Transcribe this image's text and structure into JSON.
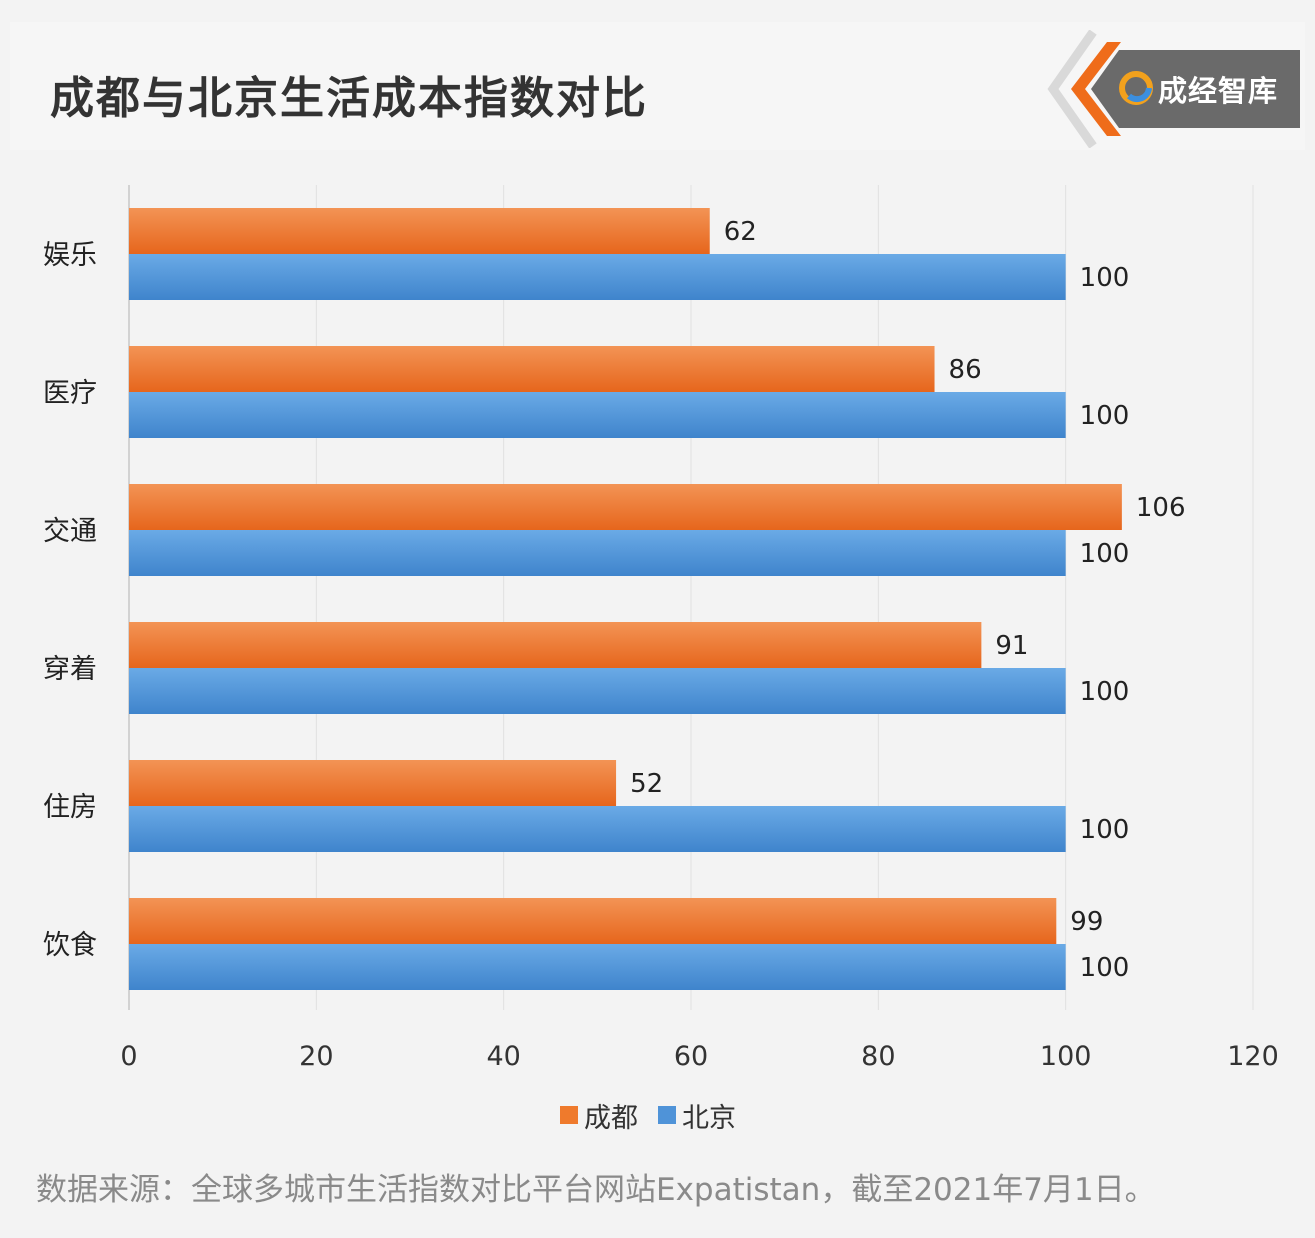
{
  "header": {
    "title": "成都与北京生活成本指数对比",
    "logo_text": "成经智库",
    "logo_colors": {
      "panel": "#6a6a6a",
      "accent": "#ef6c1a",
      "chevron_light": "#d9d9d9"
    }
  },
  "chart_data": {
    "type": "bar",
    "orientation": "horizontal",
    "categories": [
      "娱乐",
      "医疗",
      "交通",
      "穿着",
      "住房",
      "饮食"
    ],
    "series": [
      {
        "name": "成都",
        "color": "#ef7a2c",
        "values": [
          62,
          86,
          106,
          91,
          52,
          99
        ]
      },
      {
        "name": "北京",
        "color": "#4f93d8",
        "values": [
          100,
          100,
          100,
          100,
          100,
          100
        ]
      }
    ],
    "xlim": [
      0,
      120
    ],
    "x_ticks": [
      "0",
      "20",
      "40",
      "60",
      "80",
      "100",
      "120"
    ],
    "data_labels": true,
    "grid": "vertical",
    "legend": "bottom"
  },
  "footer": {
    "source": "数据来源：全球多城市生活指数对比平台网站Expatistan，截至2021年7月1日。"
  }
}
